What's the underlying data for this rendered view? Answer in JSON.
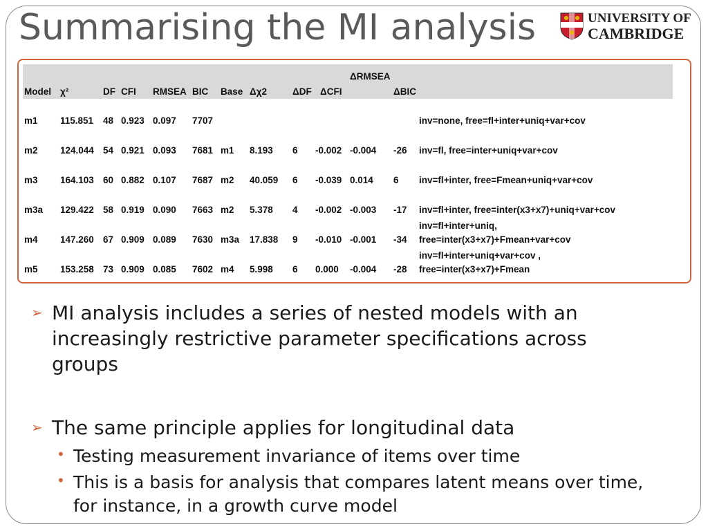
{
  "title": "Summarising the MI analysis",
  "logo": {
    "line1": "UNIVERSITY OF",
    "line2": "CAMBRIDGE"
  },
  "table": {
    "header": [
      "Model",
      "χ²",
      "DF",
      "CFI",
      "RMSEA",
      "BIC",
      "Base",
      "Δχ2",
      "ΔDF",
      "ΔCFI",
      "ΔRMSEA",
      "ΔBIC"
    ],
    "rows": [
      [
        "m1",
        "115.851",
        "48",
        "0.923",
        "0.097",
        "7707",
        null,
        null,
        null,
        null,
        null,
        null,
        "inv=none, free=fl+inter+uniq+var+cov"
      ],
      [
        "m2",
        "124.044",
        "54",
        "0.921",
        "0.093",
        "7681",
        "m1",
        "8.193",
        "6",
        "-0.002",
        "-0.004",
        "-26",
        "inv=fl, free=inter+uniq+var+cov"
      ],
      [
        "m3",
        "164.103",
        "60",
        "0.882",
        "0.107",
        "7687",
        "m2",
        "40.059",
        "6",
        "-0.039",
        "0.014",
        "6",
        "inv=fl+inter, free=Fmean+uniq+var+cov"
      ],
      [
        "m3a",
        "129.422",
        "58",
        "0.919",
        "0.090",
        "7663",
        "m2",
        "5.378",
        "4",
        "-0.002",
        "-0.003",
        "-17",
        "inv=fl+inter, free=inter(x3+x7)+uniq+var+cov"
      ],
      [
        "m4",
        "147.260",
        "67",
        "0.909",
        "0.089",
        "7630",
        "m3a",
        "17.838",
        "9",
        "-0.010",
        "-0.001",
        "-34",
        "inv=fl+inter+uniq,\nfree=inter(x3+x7)+Fmean+var+cov"
      ],
      [
        "m5",
        "153.258",
        "73",
        "0.909",
        "0.085",
        "7602",
        "m4",
        "5.998",
        "6",
        "0.000",
        "-0.004",
        "-28",
        "inv=fl+inter+uniq+var+cov ,\nfree=inter(x3+x7)+Fmean"
      ]
    ]
  },
  "bullets": [
    {
      "text": "MI analysis includes a series of nested models with an increasingly restrictive parameter specifications across groups"
    },
    {
      "text": "The same principle applies for longitudinal data",
      "sub": [
        "Testing measurement invariance of items over time",
        "This is a basis for analysis that compares latent means over time, for instance, in a growth curve model"
      ]
    }
  ]
}
